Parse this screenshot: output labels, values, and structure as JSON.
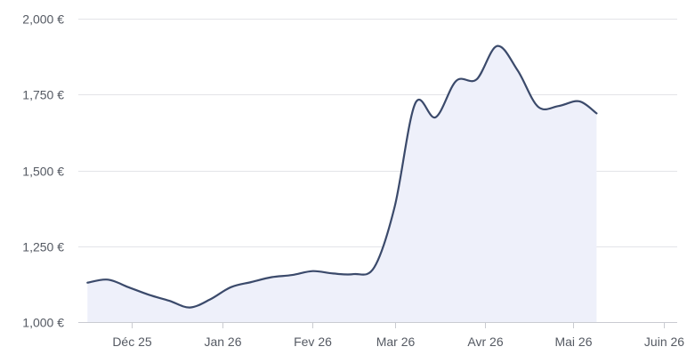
{
  "chart_data": {
    "type": "area",
    "title": "",
    "xlabel": "",
    "ylabel": "",
    "currency_suffix": " €",
    "y_ticks": [
      "1,000 €",
      "1,250 €",
      "1,500 €",
      "1,750 €",
      "2,000 €"
    ],
    "y_tick_values": [
      1000,
      1250,
      1500,
      1750,
      2000
    ],
    "ylim": [
      1000,
      2000
    ],
    "x_ticks": [
      {
        "label": "Déc 25",
        "date": "2025-12-01"
      },
      {
        "label": "Jan 26",
        "date": "2026-01-01"
      },
      {
        "label": "Fev 26",
        "date": "2026-02-01"
      },
      {
        "label": "Mar 26",
        "date": "2026-03-01"
      },
      {
        "label": "Avr 26",
        "date": "2026-04-01"
      },
      {
        "label": "Mai 26",
        "date": "2026-05-01"
      },
      {
        "label": "Juin 26",
        "date": "2026-06-01"
      }
    ],
    "xlim": [
      "2025-11-15",
      "2026-06-01"
    ],
    "grid": true,
    "colors": {
      "line": "#3b4a6b",
      "fill": "#eef0fa",
      "grid": "#e3e4e8",
      "axis": "#c9cbd1",
      "tick_text": "#555a63"
    },
    "series": [
      {
        "points": [
          {
            "date": "2025-11-16",
            "value": 1130
          },
          {
            "date": "2025-11-23",
            "value": 1140
          },
          {
            "date": "2025-11-30",
            "value": 1115
          },
          {
            "date": "2025-12-07",
            "value": 1090
          },
          {
            "date": "2025-12-14",
            "value": 1070
          },
          {
            "date": "2025-12-21",
            "value": 1048
          },
          {
            "date": "2025-12-28",
            "value": 1075
          },
          {
            "date": "2026-01-04",
            "value": 1115
          },
          {
            "date": "2026-01-11",
            "value": 1132
          },
          {
            "date": "2026-01-18",
            "value": 1148
          },
          {
            "date": "2026-01-25",
            "value": 1155
          },
          {
            "date": "2026-02-01",
            "value": 1168
          },
          {
            "date": "2026-02-08",
            "value": 1160
          },
          {
            "date": "2026-02-15",
            "value": 1158
          },
          {
            "date": "2026-02-22",
            "value": 1180
          },
          {
            "date": "2026-03-01",
            "value": 1380
          },
          {
            "date": "2026-03-08",
            "value": 1720
          },
          {
            "date": "2026-03-15",
            "value": 1675
          },
          {
            "date": "2026-03-22",
            "value": 1795
          },
          {
            "date": "2026-03-29",
            "value": 1800
          },
          {
            "date": "2026-04-05",
            "value": 1910
          },
          {
            "date": "2026-04-12",
            "value": 1830
          },
          {
            "date": "2026-04-19",
            "value": 1710
          },
          {
            "date": "2026-04-26",
            "value": 1712
          },
          {
            "date": "2026-05-03",
            "value": 1728
          },
          {
            "date": "2026-05-09",
            "value": 1688
          }
        ]
      }
    ]
  }
}
